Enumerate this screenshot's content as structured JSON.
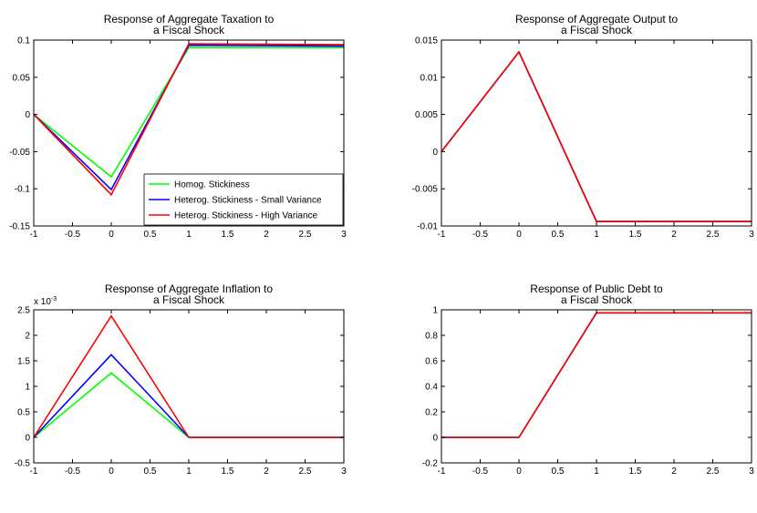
{
  "colors": {
    "homog": "#00ff00",
    "small": "#0000ff",
    "high": "#ff0000"
  },
  "chart_data": [
    {
      "id": "taxation",
      "type": "line",
      "title": [
        "Response of Aggregate Taxation to",
        "a Fiscal Shock"
      ],
      "x": [
        -1,
        0,
        1,
        3
      ],
      "xlim": [
        -1,
        3
      ],
      "ylim": [
        -0.15,
        0.1
      ],
      "xticks": [
        -1,
        -0.5,
        0,
        0.5,
        1,
        1.5,
        2,
        2.5,
        3
      ],
      "xtick_labels": [
        "-1",
        "-0.5",
        "0",
        "0.5",
        "1",
        "1.5",
        "2",
        "2.5",
        "3"
      ],
      "yticks": [
        -0.15,
        -0.1,
        -0.05,
        0,
        0.05,
        0.1
      ],
      "ytick_labels": [
        "-0.15",
        "-0.1",
        "-0.05",
        "0",
        "0.05",
        "0.1"
      ],
      "exponent_label": "",
      "legend": "bottom-right",
      "series": [
        {
          "name": "Homog. Stickiness",
          "color": "#00ff00",
          "values": [
            0,
            -0.084,
            0.09,
            0.09
          ]
        },
        {
          "name": "Heterog. Stickiness - Small Variance",
          "color": "#0000ff",
          "values": [
            0,
            -0.101,
            0.093,
            0.092
          ]
        },
        {
          "name": "Heterog. Stickiness - High Variance",
          "color": "#ff0000",
          "values": [
            0,
            -0.108,
            0.095,
            0.094
          ]
        }
      ]
    },
    {
      "id": "output",
      "type": "line",
      "title": [
        "Response of Aggregate Output to",
        "a Fiscal Shock"
      ],
      "x": [
        -1,
        0,
        1,
        3
      ],
      "xlim": [
        -1,
        3
      ],
      "ylim": [
        -0.01,
        0.015
      ],
      "xticks": [
        -1,
        -0.5,
        0,
        0.5,
        1,
        1.5,
        2,
        2.5,
        3
      ],
      "xtick_labels": [
        "-1",
        "-0.5",
        "0",
        "0.5",
        "1",
        "1.5",
        "2",
        "2.5",
        "3"
      ],
      "yticks": [
        -0.01,
        -0.005,
        0,
        0.005,
        0.01,
        0.015
      ],
      "ytick_labels": [
        "-0.01",
        "-0.005",
        "0",
        "0.005",
        "0.01",
        "0.015"
      ],
      "exponent_label": "",
      "series": [
        {
          "color": "#00ff00",
          "values": [
            0,
            0.0134,
            -0.0094,
            -0.0094
          ]
        },
        {
          "color": "#0000ff",
          "values": [
            0,
            0.0134,
            -0.0094,
            -0.0094
          ]
        },
        {
          "color": "#ff0000",
          "values": [
            0,
            0.0134,
            -0.0094,
            -0.0094
          ]
        }
      ]
    },
    {
      "id": "inflation",
      "type": "line",
      "title": [
        "Response of Aggregate Inflation to",
        "a Fiscal Shock"
      ],
      "x": [
        -1,
        0,
        1,
        3
      ],
      "xlim": [
        -1,
        3
      ],
      "ylim": [
        -0.5,
        2.5
      ],
      "xticks": [
        -1,
        -0.5,
        0,
        0.5,
        1,
        1.5,
        2,
        2.5,
        3
      ],
      "xtick_labels": [
        "-1",
        "-0.5",
        "0",
        "0.5",
        "1",
        "1.5",
        "2",
        "2.5",
        "3"
      ],
      "yticks": [
        -0.5,
        0,
        0.5,
        1,
        1.5,
        2,
        2.5
      ],
      "ytick_labels": [
        "-0.5",
        "0",
        "0.5",
        "1",
        "1.5",
        "2",
        "2.5"
      ],
      "exponent_label": "x 10",
      "exponent_power": "-3",
      "series": [
        {
          "color": "#00ff00",
          "values": [
            0,
            1.26,
            0,
            0
          ]
        },
        {
          "color": "#0000ff",
          "values": [
            0,
            1.62,
            0,
            0
          ]
        },
        {
          "color": "#ff0000",
          "values": [
            0,
            2.38,
            0,
            0
          ]
        }
      ]
    },
    {
      "id": "debt",
      "type": "line",
      "title": [
        "Response of Public Debt to",
        "a Fiscal Shock"
      ],
      "x": [
        -1,
        0,
        1,
        3
      ],
      "xlim": [
        -1,
        3
      ],
      "ylim": [
        -0.2,
        1
      ],
      "xticks": [
        -1,
        -0.5,
        0,
        0.5,
        1,
        1.5,
        2,
        2.5,
        3
      ],
      "xtick_labels": [
        "-1",
        "-0.5",
        "0",
        "0.5",
        "1",
        "1.5",
        "2",
        "2.5",
        "3"
      ],
      "yticks": [
        -0.2,
        0,
        0.2,
        0.4,
        0.6,
        0.8,
        1
      ],
      "ytick_labels": [
        "-0.2",
        "0",
        "0.2",
        "0.4",
        "0.6",
        "0.8",
        "1"
      ],
      "exponent_label": "",
      "series": [
        {
          "color": "#00ff00",
          "values": [
            0,
            0,
            0.976,
            0.976
          ]
        },
        {
          "color": "#0000ff",
          "values": [
            0,
            0,
            0.976,
            0.976
          ]
        },
        {
          "color": "#ff0000",
          "values": [
            0,
            0,
            0.976,
            0.976
          ]
        }
      ]
    }
  ]
}
